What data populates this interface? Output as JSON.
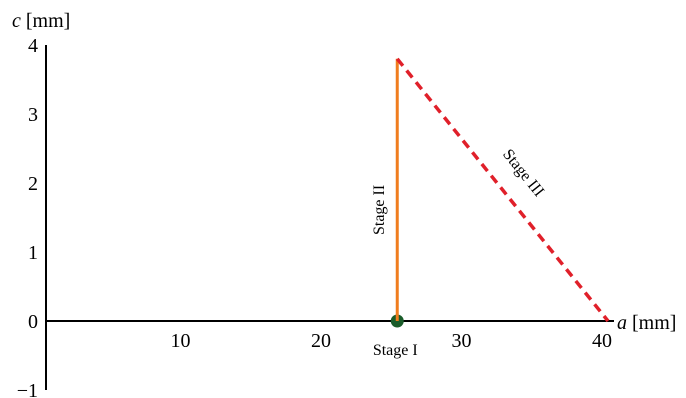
{
  "chart_data": {
    "type": "line",
    "xlabel_var": "a",
    "xlabel_unit": "[mm]",
    "ylabel_var": "c",
    "ylabel_unit": "[mm]",
    "xlim": [
      0,
      40
    ],
    "ylim": [
      -1,
      4
    ],
    "x_ticks": [
      10,
      20,
      30,
      40
    ],
    "y_ticks": [
      -1,
      0,
      1,
      2,
      3,
      4
    ],
    "grid": false,
    "series": [
      {
        "label": "Stage I",
        "kind": "point",
        "color": "#1a5c2a",
        "points": [
          {
            "x": 25,
            "y": 0
          }
        ]
      },
      {
        "label": "Stage II",
        "kind": "solid",
        "color": "#f07d1e",
        "points": [
          {
            "x": 25,
            "y": 0
          },
          {
            "x": 25,
            "y": 3.8
          }
        ]
      },
      {
        "label": "Stage III",
        "kind": "dashed",
        "color": "#e0202a",
        "points": [
          {
            "x": 25,
            "y": 3.8
          },
          {
            "x": 40,
            "y": 0
          }
        ]
      }
    ]
  }
}
